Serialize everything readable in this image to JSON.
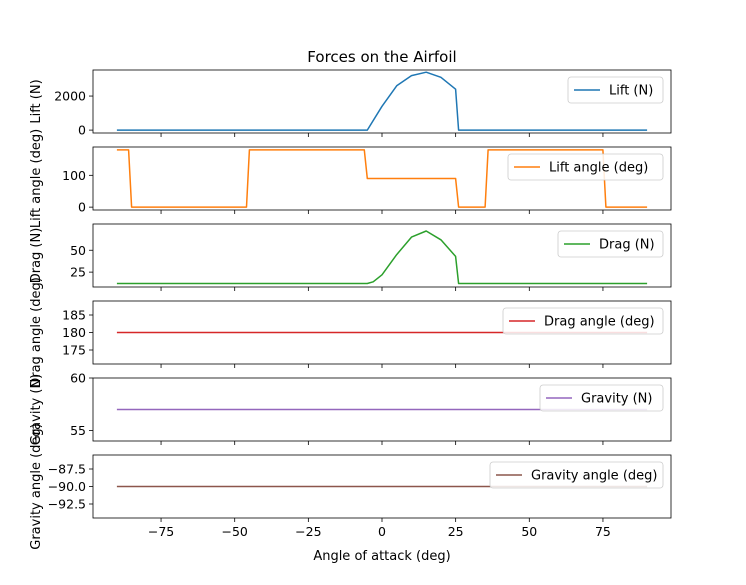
{
  "title": "Forces on the Airfoil",
  "xlabel": "Angle of attack (deg)",
  "x_ticks": [
    -75,
    -50,
    -25,
    0,
    25,
    50,
    75
  ],
  "colors": {
    "lift": "#1f77b4",
    "lift_angle": "#ff7f0e",
    "drag": "#2ca02c",
    "drag_angle": "#d62728",
    "gravity": "#9467bd",
    "gravity_angle": "#8c564b"
  },
  "chart_data": [
    {
      "type": "line",
      "title": "Forces on the Airfoil",
      "ylabel": "Lift (N)",
      "legend": "Lift (N)",
      "legend_position": "upper right",
      "xlim": [
        -98.1,
        98.1
      ],
      "ylim": [
        -170,
        3530
      ],
      "yticks": [
        0,
        2000
      ],
      "series": [
        {
          "name": "Lift (N)",
          "color": "#1f77b4",
          "x": [
            -90,
            -5,
            0,
            5,
            10,
            15,
            20,
            25,
            26,
            90
          ],
          "y": [
            0,
            0,
            1400,
            2600,
            3200,
            3400,
            3100,
            2400,
            0,
            0
          ]
        }
      ]
    },
    {
      "type": "line",
      "ylabel": "Lift angle (deg)",
      "legend": "Lift angle (deg)",
      "legend_position": "upper right",
      "xlim": [
        -98.1,
        98.1
      ],
      "ylim": [
        -9,
        189
      ],
      "yticks": [
        0,
        100
      ],
      "series": [
        {
          "name": "Lift angle (deg)",
          "color": "#ff7f0e",
          "x": [
            -90,
            -86,
            -85,
            -46,
            -45,
            -6,
            -5,
            25,
            26,
            35,
            36,
            75,
            76,
            90
          ],
          "y": [
            180,
            180,
            0,
            0,
            180,
            180,
            90,
            90,
            0,
            0,
            180,
            180,
            0,
            0
          ]
        }
      ]
    },
    {
      "type": "line",
      "ylabel": "Drag (N)",
      "legend": "Drag (N)",
      "legend_position": "upper right",
      "xlim": [
        -98.1,
        98.1
      ],
      "ylim": [
        8,
        80
      ],
      "yticks": [
        25,
        50
      ],
      "series": [
        {
          "name": "Drag (N)",
          "color": "#2ca02c",
          "x": [
            -90,
            -5,
            -3,
            0,
            5,
            10,
            15,
            20,
            25,
            26,
            90
          ],
          "y": [
            12,
            12,
            14,
            22,
            45,
            65,
            72,
            62,
            43,
            12,
            12
          ]
        }
      ]
    },
    {
      "type": "line",
      "ylabel": "Drag angle (deg)",
      "legend": "Drag angle (deg)",
      "legend_position": "upper right",
      "xlim": [
        -98.1,
        98.1
      ],
      "ylim": [
        171,
        189
      ],
      "yticks": [
        175,
        180,
        185
      ],
      "series": [
        {
          "name": "Drag angle (deg)",
          "color": "#d62728",
          "x": [
            -90,
            90
          ],
          "y": [
            180,
            180
          ]
        }
      ]
    },
    {
      "type": "line",
      "ylabel": "Gravity (N)",
      "legend": "Gravity (N)",
      "legend_position": "upper right",
      "xlim": [
        -98.1,
        98.1
      ],
      "ylim": [
        54,
        60
      ],
      "yticks": [
        55,
        60
      ],
      "series": [
        {
          "name": "Gravity (N)",
          "color": "#9467bd",
          "x": [
            -90,
            90
          ],
          "y": [
            57,
            57
          ]
        }
      ]
    },
    {
      "type": "line",
      "ylabel": "Gravity angle (deg)",
      "legend": "Gravity angle (deg)",
      "legend_position": "upper right",
      "xlim": [
        -98.1,
        98.1
      ],
      "ylim": [
        -94.5,
        -85.5
      ],
      "yticks": [
        -92.5,
        -90.0,
        -87.5
      ],
      "ytick_labels": [
        "−92.5",
        "−90.0",
        "−87.5"
      ],
      "series": [
        {
          "name": "Gravity angle (deg)",
          "color": "#8c564b",
          "x": [
            -90,
            90
          ],
          "y": [
            -90,
            -90
          ]
        }
      ]
    }
  ]
}
